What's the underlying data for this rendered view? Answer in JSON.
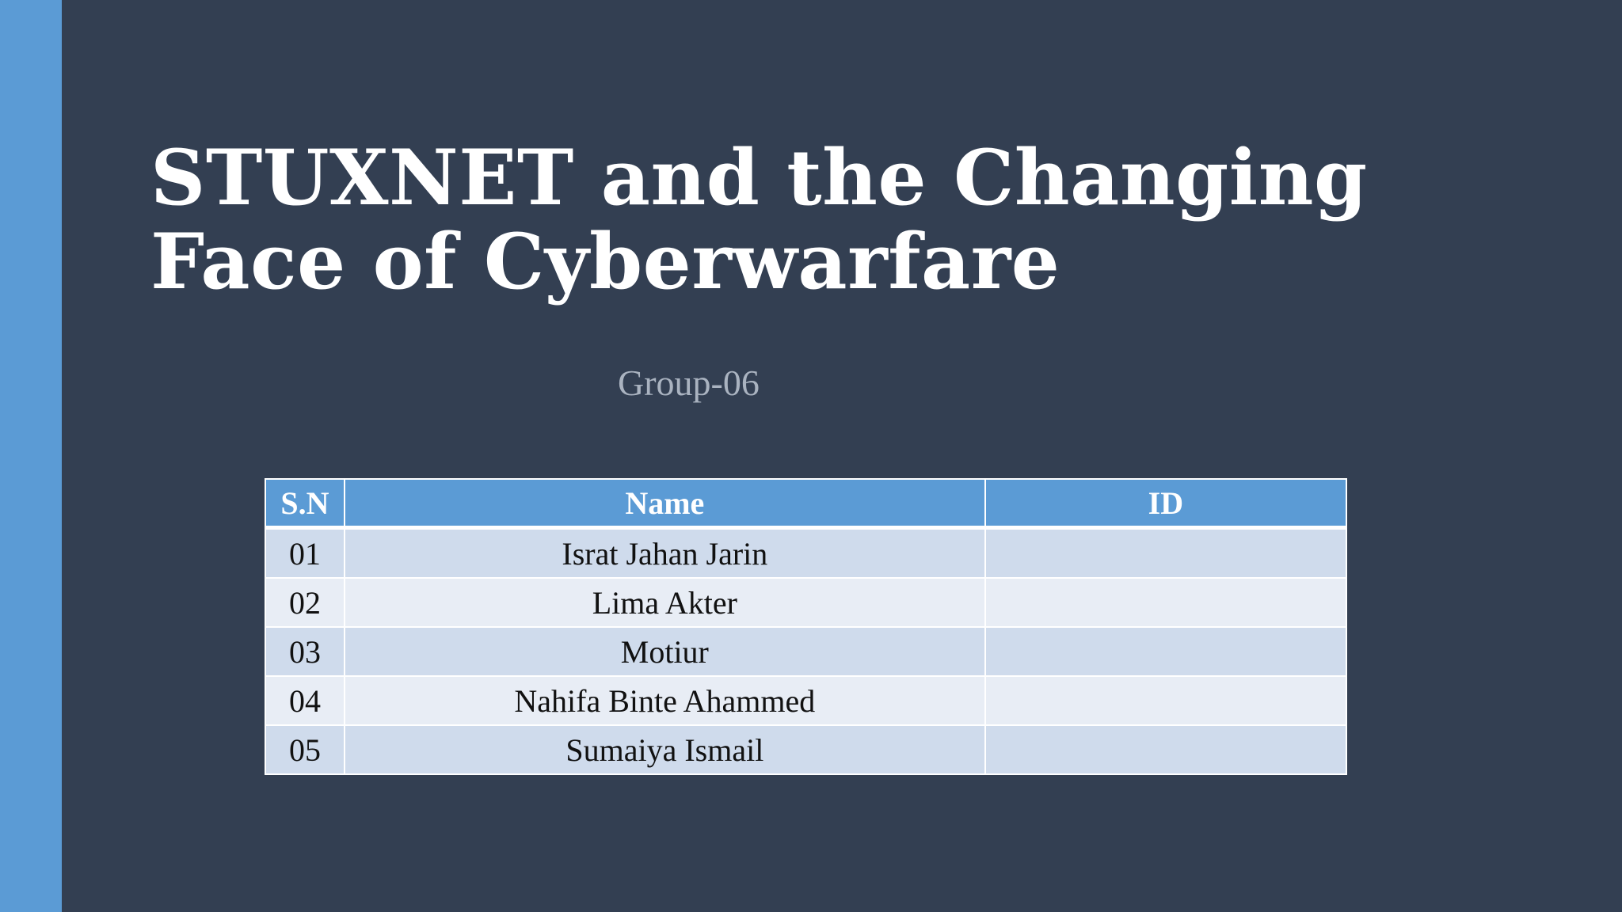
{
  "slide": {
    "title_lines": [
      "STUXNET and the Changing",
      "Face of Cyberwarfare"
    ],
    "subtitle": "Group-06",
    "table": {
      "headers": [
        "S.N",
        "Name",
        "ID"
      ],
      "rows": [
        {
          "sn": "01",
          "name": "Israt Jahan Jarin",
          "id": ""
        },
        {
          "sn": "02",
          "name": "Lima Akter",
          "id": ""
        },
        {
          "sn": "03",
          "name": "Motiur",
          "id": ""
        },
        {
          "sn": "04",
          "name": "Nahifa Binte Ahammed",
          "id": ""
        },
        {
          "sn": "05",
          "name": "Sumaiya Ismail",
          "id": ""
        }
      ]
    }
  },
  "colors": {
    "background": "#333f52",
    "accent": "#5b9bd5",
    "row_dark": "#cfdbec",
    "row_light": "#e8edf5"
  }
}
